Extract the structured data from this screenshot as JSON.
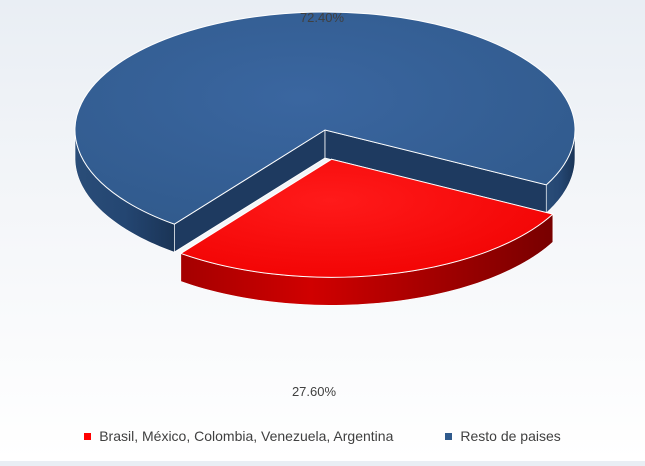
{
  "chart_data": {
    "type": "pie",
    "categories": [
      "Brasil, México, Colombia, Venezuela, Argentina",
      "Resto de paises"
    ],
    "values": [
      27.6,
      72.4
    ],
    "data_labels": [
      "27.60%",
      "72.40%"
    ],
    "colors": [
      "#ff0000",
      "#305a8c"
    ],
    "style": "3d-exploded",
    "legend_position": "bottom"
  },
  "legend": {
    "items": [
      {
        "label": "Brasil, México, Colombia, Venezuela, Argentina",
        "color": "#ff0000"
      },
      {
        "label": "Resto de paises",
        "color": "#305a8c"
      }
    ]
  }
}
